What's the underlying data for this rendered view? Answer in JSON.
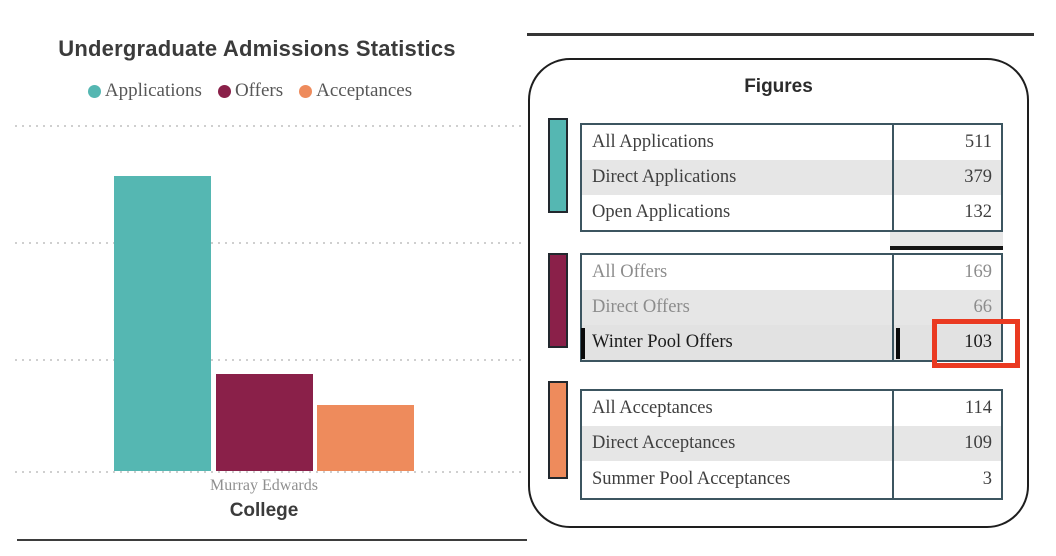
{
  "chart": {
    "title": "Undergraduate Admissions Statistics",
    "x_tick_label": "Murray Edwards",
    "x_axis_label": "College",
    "legend": [
      {
        "label": "Applications",
        "color": "#55b7b2"
      },
      {
        "label": "Offers",
        "color": "#8a2049"
      },
      {
        "label": "Acceptances",
        "color": "#ee8b5c"
      }
    ]
  },
  "chart_data": {
    "type": "bar",
    "categories": [
      "Murray Edwards"
    ],
    "series": [
      {
        "name": "Applications",
        "values": [
          511
        ],
        "color": "#55b7b2"
      },
      {
        "name": "Offers",
        "values": [
          169
        ],
        "color": "#8a2049"
      },
      {
        "name": "Acceptances",
        "values": [
          114
        ],
        "color": "#ee8b5c"
      }
    ],
    "title": "Undergraduate Admissions Statistics",
    "xlabel": "College",
    "ylabel": "",
    "ylim": [
      0,
      600
    ],
    "gridline_values": [
      0,
      200,
      400,
      600
    ],
    "grid": "horizontal-dotted",
    "legend_position": "top"
  },
  "figures_panel": {
    "title": "Figures",
    "highlight_color": "#ea3a21",
    "groups": [
      {
        "name": "applications",
        "swatch_color": "#55b7b2",
        "rows": [
          {
            "label": "All Applications",
            "value": "511"
          },
          {
            "label": "Direct Applications",
            "value": "379"
          },
          {
            "label": "Open Applications",
            "value": "132"
          }
        ]
      },
      {
        "name": "offers",
        "swatch_color": "#8a2049",
        "rows": [
          {
            "label": "All Offers",
            "value": "169"
          },
          {
            "label": "Direct Offers",
            "value": "66"
          },
          {
            "label": "Winter Pool Offers",
            "value": "103"
          }
        ]
      },
      {
        "name": "acceptances",
        "swatch_color": "#ee8b5c",
        "rows": [
          {
            "label": "All Acceptances",
            "value": "114"
          },
          {
            "label": "Direct Acceptances",
            "value": "109"
          },
          {
            "label": "Summer Pool Acceptances",
            "value": "3"
          }
        ]
      }
    ]
  }
}
